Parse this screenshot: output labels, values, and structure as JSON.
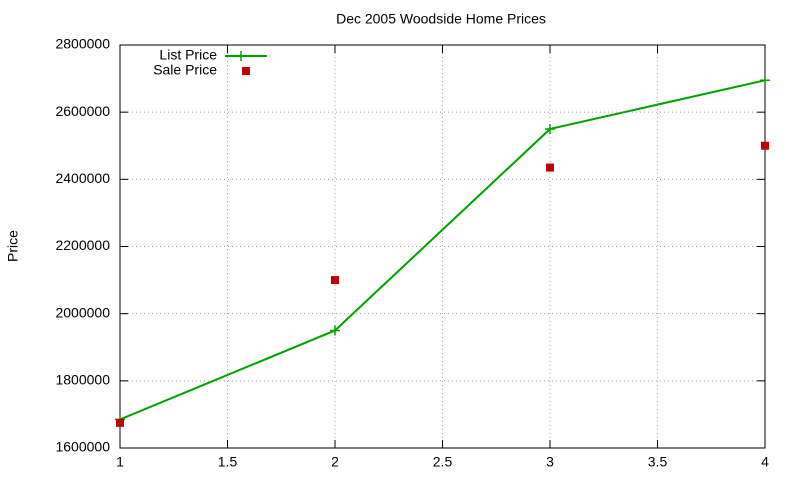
{
  "chart_data": {
    "type": "line",
    "title": "Dec 2005 Woodside Home Prices",
    "y_label": "Price",
    "x": [
      1,
      2,
      3,
      4
    ],
    "series": [
      {
        "name": "List Price",
        "color": "#00a000",
        "mode": "lines+points",
        "values": [
          1685000,
          1950000,
          2550000,
          2695000
        ]
      },
      {
        "name": "Sale Price",
        "color": "#c00000",
        "mode": "points",
        "values": [
          1675000,
          2100000,
          2435000,
          2500000
        ]
      }
    ],
    "xlim": [
      1,
      4
    ],
    "xticks": [
      1,
      1.5,
      2,
      2.5,
      3,
      3.5,
      4
    ],
    "ylim": [
      1600000,
      2800000
    ],
    "yticks": [
      1600000,
      1800000,
      2000000,
      2200000,
      2400000,
      2600000,
      2800000
    ],
    "grid": true,
    "legend": "top-left"
  }
}
